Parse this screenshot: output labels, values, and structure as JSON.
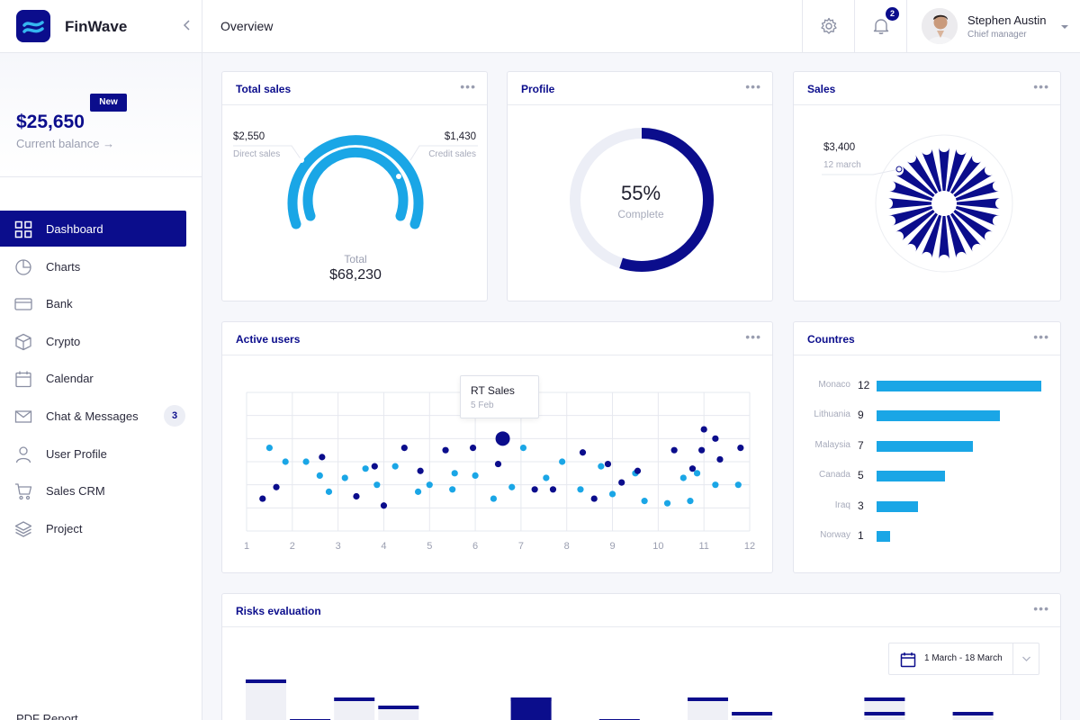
{
  "app": {
    "name": "FinWave",
    "page_title": "Overview"
  },
  "header": {
    "notifications_count": "2",
    "user_name": "Stephen Austin",
    "user_role": "Chief manager"
  },
  "sidebar": {
    "badge": "New",
    "balance_amount": "$25,650",
    "balance_label": "Current balance →",
    "items": [
      {
        "label": "Dashboard"
      },
      {
        "label": "Charts"
      },
      {
        "label": "Bank"
      },
      {
        "label": "Crypto"
      },
      {
        "label": "Calendar"
      },
      {
        "label": "Chat & Messages",
        "count": "3"
      },
      {
        "label": "User Profile"
      },
      {
        "label": "Sales CRM"
      },
      {
        "label": "Project"
      }
    ],
    "footer_item": "PDF Report"
  },
  "cards": {
    "total_sales": {
      "title": "Total sales",
      "left_value": "$2,550",
      "left_label": "Direct sales",
      "right_value": "$1,430",
      "right_label": "Credit sales",
      "total_label": "Total",
      "total_value": "$68,230"
    },
    "profile": {
      "title": "Profile",
      "value": "55%",
      "label": "Complete"
    },
    "sales": {
      "title": "Sales",
      "value": "$3,400",
      "label": "12 march"
    },
    "active_users": {
      "title": "Active users",
      "tooltip_title": "RT Sales",
      "tooltip_date": "5 Feb"
    },
    "countries": {
      "title": "Countres"
    },
    "risks": {
      "title": "Risks evaluation",
      "date_range": "1 March - 18 March"
    }
  },
  "colors": {
    "navy": "#0b0d8c",
    "sky": "#1aa6e6",
    "grid": "#e6e8ef"
  },
  "chart_data": [
    {
      "type": "pie",
      "title": "Profile",
      "values": [
        55,
        45
      ],
      "center_text": "55%"
    },
    {
      "type": "scatter",
      "title": "Active users",
      "x_ticks": [
        "1",
        "2",
        "3",
        "4",
        "5",
        "6",
        "7",
        "8",
        "9",
        "10",
        "11",
        "12"
      ],
      "xlim": [
        1,
        12
      ],
      "ylim": [
        0,
        6
      ],
      "grid": true,
      "series": [
        {
          "color": "#1aa6e6",
          "points": [
            [
              1.5,
              3.6
            ],
            [
              1.85,
              3.0
            ],
            [
              2.3,
              3.0
            ],
            [
              2.6,
              2.4
            ],
            [
              2.8,
              1.7
            ],
            [
              3.15,
              2.3
            ],
            [
              3.6,
              2.7
            ],
            [
              3.85,
              2.0
            ],
            [
              4.25,
              2.8
            ],
            [
              4.75,
              1.7
            ],
            [
              5.0,
              2.0
            ],
            [
              5.5,
              1.8
            ],
            [
              5.55,
              2.5
            ],
            [
              6.0,
              2.4
            ],
            [
              6.4,
              1.4
            ],
            [
              6.8,
              1.9
            ],
            [
              7.05,
              3.6
            ],
            [
              7.55,
              2.3
            ],
            [
              7.9,
              3.0
            ],
            [
              8.3,
              1.8
            ],
            [
              8.75,
              2.8
            ],
            [
              9.0,
              1.6
            ],
            [
              9.5,
              2.5
            ],
            [
              9.7,
              1.3
            ],
            [
              10.2,
              1.2
            ],
            [
              10.55,
              2.3
            ],
            [
              10.7,
              1.3
            ],
            [
              10.85,
              2.5
            ],
            [
              11.25,
              2.0
            ],
            [
              11.75,
              2.0
            ]
          ]
        },
        {
          "color": "#0b0d8c",
          "points": [
            [
              1.35,
              1.4
            ],
            [
              1.65,
              1.9
            ],
            [
              2.65,
              3.2
            ],
            [
              3.4,
              1.5
            ],
            [
              3.8,
              2.8
            ],
            [
              4.0,
              1.1
            ],
            [
              4.45,
              3.6
            ],
            [
              4.8,
              2.6
            ],
            [
              5.35,
              3.5
            ],
            [
              5.95,
              3.6
            ],
            [
              6.5,
              2.9
            ],
            [
              7.3,
              1.8
            ],
            [
              7.7,
              1.8
            ],
            [
              8.35,
              3.4
            ],
            [
              8.6,
              1.4
            ],
            [
              8.9,
              2.9
            ],
            [
              9.2,
              2.1
            ],
            [
              9.55,
              2.6
            ],
            [
              10.35,
              3.5
            ],
            [
              10.75,
              2.7
            ],
            [
              10.95,
              3.5
            ],
            [
              11.25,
              4.0
            ],
            [
              11.35,
              3.1
            ],
            [
              11.8,
              3.6
            ],
            [
              11.0,
              4.4
            ]
          ]
        }
      ],
      "highlight": {
        "x": 6.6,
        "y": 4.0,
        "label": "RT Sales",
        "date": "5 Feb"
      }
    },
    {
      "type": "bar",
      "title": "Countres",
      "orientation": "horizontal",
      "categories": [
        "Monaco",
        "Lithuania",
        "Malaysia",
        "Canada",
        "Iraq",
        "Norway"
      ],
      "values": [
        12,
        9,
        7,
        5,
        3,
        1
      ],
      "xlim": [
        0,
        12
      ]
    },
    {
      "type": "bar",
      "title": "Risks evaluation",
      "values": [
        46,
        0,
        26,
        17,
        0,
        0,
        26,
        0,
        0,
        0,
        26,
        0,
        0,
        0,
        26,
        0,
        0
      ]
    }
  ]
}
